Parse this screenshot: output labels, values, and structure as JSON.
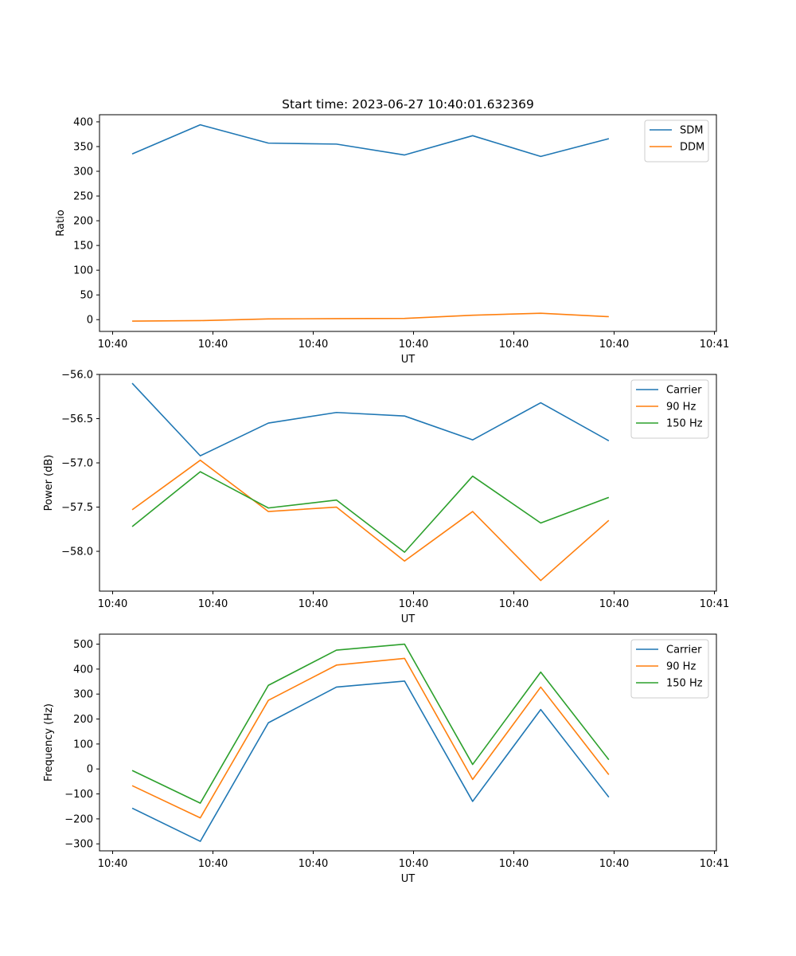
{
  "figure": {
    "title": "Start time: 2023-06-27 10:40:01.632369"
  },
  "chart_data": [
    {
      "type": "line",
      "xlabel": "UT",
      "ylabel": "Ratio",
      "x_tick_labels": [
        "10:40",
        "10:40",
        "10:40",
        "10:40",
        "10:40",
        "10:40",
        "10:40",
        "10:41"
      ],
      "x_index": [
        1,
        2,
        3,
        4,
        5,
        6,
        7,
        8
      ],
      "xlim": [
        0.52,
        9.58
      ],
      "ylim": [
        -23.8,
        414.4
      ],
      "yticks": [
        0,
        50,
        100,
        150,
        200,
        250,
        300,
        350,
        400
      ],
      "legend": "top-right",
      "series": [
        {
          "name": "SDM",
          "color": "#1f77b4",
          "values": [
            335,
            394,
            357,
            355,
            333,
            372,
            330,
            366
          ]
        },
        {
          "name": "DDM",
          "color": "#ff7f0e",
          "values": [
            -3,
            -2,
            1.5,
            2,
            2.5,
            9,
            13,
            6
          ]
        }
      ]
    },
    {
      "type": "line",
      "xlabel": "UT",
      "ylabel": "Power (dB)",
      "x_tick_labels": [
        "10:40",
        "10:40",
        "10:40",
        "10:40",
        "10:40",
        "10:40",
        "10:40",
        "10:41"
      ],
      "x_index": [
        1,
        2,
        3,
        4,
        5,
        6,
        7,
        8
      ],
      "xlim": [
        0.52,
        9.58
      ],
      "ylim": [
        -58.45,
        -56.0
      ],
      "yticks": [
        -58.0,
        -57.5,
        -57.0,
        -56.5,
        -56.0
      ],
      "ytick_labels": [
        "−58.0",
        "−57.5",
        "−57.0",
        "−56.5",
        "−56.0"
      ],
      "legend": "top-right",
      "series": [
        {
          "name": "Carrier",
          "color": "#1f77b4",
          "values": [
            -56.1,
            -56.92,
            -56.55,
            -56.43,
            -56.47,
            -56.74,
            -56.32,
            -56.75
          ]
        },
        {
          "name": "90 Hz",
          "color": "#ff7f0e",
          "values": [
            -57.53,
            -56.97,
            -57.55,
            -57.5,
            -58.11,
            -57.55,
            -58.33,
            -57.65
          ]
        },
        {
          "name": "150 Hz",
          "color": "#2ca02c",
          "values": [
            -57.72,
            -57.1,
            -57.51,
            -57.42,
            -58.01,
            -57.15,
            -57.68,
            -57.39
          ]
        }
      ]
    },
    {
      "type": "line",
      "xlabel": "UT",
      "ylabel": "Frequency (Hz)",
      "x_tick_labels": [
        "10:40",
        "10:40",
        "10:40",
        "10:40",
        "10:40",
        "10:40",
        "10:40",
        "10:41"
      ],
      "x_index": [
        1,
        2,
        3,
        4,
        5,
        6,
        7,
        8
      ],
      "xlim": [
        0.52,
        9.58
      ],
      "ylim": [
        -328,
        540
      ],
      "yticks": [
        -300,
        -200,
        -100,
        0,
        100,
        200,
        300,
        400,
        500
      ],
      "ytick_labels": [
        "−300",
        "−200",
        "−100",
        "0",
        "100",
        "200",
        "300",
        "400",
        "500"
      ],
      "legend": "top-right",
      "series": [
        {
          "name": "Carrier",
          "color": "#1f77b4",
          "values": [
            -157,
            -290,
            185,
            328,
            352,
            -130,
            238,
            -113
          ]
        },
        {
          "name": "90 Hz",
          "color": "#ff7f0e",
          "values": [
            -67,
            -196,
            275,
            416,
            443,
            -42,
            328,
            -23
          ]
        },
        {
          "name": "150 Hz",
          "color": "#2ca02c",
          "values": [
            -6,
            -137,
            335,
            476,
            500,
            18,
            388,
            37
          ]
        }
      ]
    }
  ]
}
